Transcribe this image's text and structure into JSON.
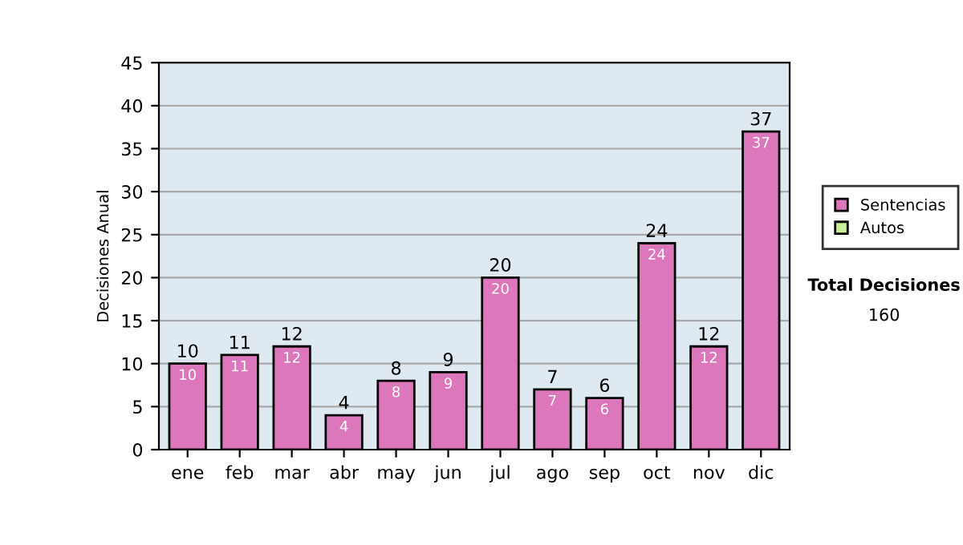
{
  "chart_data": {
    "type": "bar",
    "ylabel": "Decisiones Anual",
    "categories": [
      "ene",
      "feb",
      "mar",
      "abr",
      "may",
      "jun",
      "jul",
      "ago",
      "sep",
      "oct",
      "nov",
      "dic"
    ],
    "series": [
      {
        "name": "Sentencias",
        "color": "#dd77bb",
        "values": [
          10,
          11,
          12,
          4,
          8,
          9,
          20,
          7,
          6,
          24,
          12,
          37
        ]
      },
      {
        "name": "Autos",
        "color": "#ccee99",
        "values": [
          null,
          null,
          null,
          null,
          null,
          null,
          null,
          null,
          null,
          null,
          null,
          null
        ]
      }
    ],
    "stacked": true,
    "data_labels": true,
    "totals": [
      "10",
      "11",
      "12",
      "4",
      "8",
      "9",
      "20",
      "7",
      "6",
      "24",
      "12",
      "37"
    ],
    "ylim": [
      0,
      45
    ],
    "yticks": [
      0,
      5,
      10,
      15,
      20,
      25,
      30,
      35,
      40,
      45
    ],
    "grid": "y",
    "legend": "right",
    "annotations": [
      "Total Decisiones",
      "160"
    ]
  }
}
